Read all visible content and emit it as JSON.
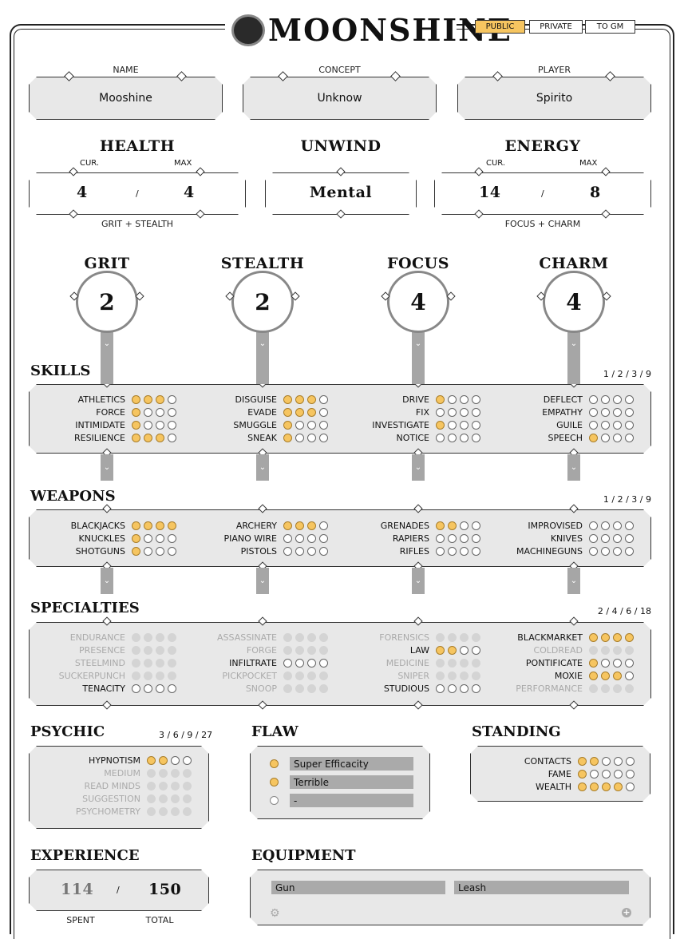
{
  "header": {
    "logo_text": "Moonshine",
    "tabs": [
      {
        "label": "PUBLIC",
        "active": true
      },
      {
        "label": "PRIVATE",
        "active": false
      },
      {
        "label": "TO GM",
        "active": false
      }
    ]
  },
  "identity": {
    "name_label": "NAME",
    "name": "Mooshine",
    "concept_label": "CONCEPT",
    "concept": "Unknow",
    "player_label": "PLAYER",
    "player": "Spirito"
  },
  "health": {
    "title": "HEALTH",
    "cur_label": "CUR.",
    "max_label": "MAX",
    "cur": "4",
    "sep": "/",
    "max": "4",
    "formula": "GRIT + STEALTH"
  },
  "unwind": {
    "title": "UNWIND",
    "value": "Mental"
  },
  "energy": {
    "title": "ENERGY",
    "cur_label": "CUR.",
    "max_label": "MAX",
    "cur": "14",
    "sep": "/",
    "max": "8",
    "formula": "FOCUS + CHARM"
  },
  "attributes": [
    {
      "name": "GRIT",
      "value": "2"
    },
    {
      "name": "STEALTH",
      "value": "2"
    },
    {
      "name": "FOCUS",
      "value": "4"
    },
    {
      "name": "CHARM",
      "value": "4"
    }
  ],
  "skills": {
    "title": "SKILLS",
    "scale": "1 / 2 / 3 / 9",
    "cols": [
      [
        {
          "n": "ATHLETICS",
          "v": 3
        },
        {
          "n": "FORCE",
          "v": 1
        },
        {
          "n": "INTIMIDATE",
          "v": 1
        },
        {
          "n": "RESILIENCE",
          "v": 3
        }
      ],
      [
        {
          "n": "DISGUISE",
          "v": 3
        },
        {
          "n": "EVADE",
          "v": 3
        },
        {
          "n": "SMUGGLE",
          "v": 1
        },
        {
          "n": "SNEAK",
          "v": 1
        }
      ],
      [
        {
          "n": "DRIVE",
          "v": 1
        },
        {
          "n": "FIX",
          "v": 0
        },
        {
          "n": "INVESTIGATE",
          "v": 1
        },
        {
          "n": "NOTICE",
          "v": 0
        }
      ],
      [
        {
          "n": "DEFLECT",
          "v": 0
        },
        {
          "n": "EMPATHY",
          "v": 0
        },
        {
          "n": "GUILE",
          "v": 0
        },
        {
          "n": "SPEECH",
          "v": 1
        }
      ]
    ]
  },
  "weapons": {
    "title": "WEAPONS",
    "scale": "1 / 2 / 3 / 9",
    "cols": [
      [
        {
          "n": "BLACKJACKS",
          "v": 4
        },
        {
          "n": "KNUCKLES",
          "v": 1
        },
        {
          "n": "SHOTGUNS",
          "v": 1
        }
      ],
      [
        {
          "n": "ARCHERY",
          "v": 3
        },
        {
          "n": "PIANO WIRE",
          "v": 0
        },
        {
          "n": "PISTOLS",
          "v": 0
        }
      ],
      [
        {
          "n": "GRENADES",
          "v": 2
        },
        {
          "n": "RAPIERS",
          "v": 0
        },
        {
          "n": "RIFLES",
          "v": 0
        }
      ],
      [
        {
          "n": "IMPROVISED",
          "v": 0
        },
        {
          "n": "KNIVES",
          "v": 0
        },
        {
          "n": "MACHINEGUNS",
          "v": 0
        }
      ]
    ]
  },
  "specialties": {
    "title": "SPECIALTIES",
    "scale": "2 / 4 / 6 / 18",
    "cols": [
      [
        {
          "n": "ENDURANCE",
          "v": 0,
          "dim": true
        },
        {
          "n": "PRESENCE",
          "v": 0,
          "dim": true
        },
        {
          "n": "STEELMIND",
          "v": 0,
          "dim": true
        },
        {
          "n": "SUCKERPUNCH",
          "v": 0,
          "dim": true
        },
        {
          "n": "TENACITY",
          "v": 0,
          "dim": false
        }
      ],
      [
        {
          "n": "ASSASSINATE",
          "v": 0,
          "dim": true
        },
        {
          "n": "FORGE",
          "v": 0,
          "dim": true
        },
        {
          "n": "INFILTRATE",
          "v": 0,
          "dim": false
        },
        {
          "n": "PICKPOCKET",
          "v": 0,
          "dim": true
        },
        {
          "n": "SNOOP",
          "v": 0,
          "dim": true
        }
      ],
      [
        {
          "n": "FORENSICS",
          "v": 0,
          "dim": true
        },
        {
          "n": "LAW",
          "v": 2,
          "dim": false
        },
        {
          "n": "MEDICINE",
          "v": 0,
          "dim": true
        },
        {
          "n": "SNIPER",
          "v": 0,
          "dim": true
        },
        {
          "n": "STUDIOUS",
          "v": 0,
          "dim": false
        }
      ],
      [
        {
          "n": "BLACKMARKET",
          "v": 4,
          "dim": false
        },
        {
          "n": "COLDREAD",
          "v": 0,
          "dim": true
        },
        {
          "n": "PONTIFICATE",
          "v": 1,
          "dim": false
        },
        {
          "n": "MOXIE",
          "v": 3,
          "dim": false
        },
        {
          "n": "PERFORMANCE",
          "v": 0,
          "dim": true
        }
      ]
    ]
  },
  "psychic": {
    "title": "PSYCHIC",
    "scale": "3 / 6 / 9 / 27",
    "rows": [
      {
        "n": "HYPNOTISM",
        "v": 2,
        "dim": false
      },
      {
        "n": "MEDIUM",
        "v": 0,
        "dim": true
      },
      {
        "n": "READ MINDS",
        "v": 0,
        "dim": true
      },
      {
        "n": "SUGGESTION",
        "v": 0,
        "dim": true
      },
      {
        "n": "PSYCHOMETRY",
        "v": 0,
        "dim": true
      }
    ]
  },
  "flaw": {
    "title": "FLAW",
    "rows": [
      {
        "text": "Super Efficacity",
        "on": true
      },
      {
        "text": "Terrible",
        "on": true
      },
      {
        "text": "-",
        "on": false
      }
    ]
  },
  "standing": {
    "title": "STANDING",
    "rows": [
      {
        "n": "CONTACTS",
        "v": 2
      },
      {
        "n": "FAME",
        "v": 1
      },
      {
        "n": "WEALTH",
        "v": 4
      }
    ]
  },
  "experience": {
    "title": "EXPERIENCE",
    "spent": "114",
    "sep": "/",
    "total": "150",
    "spent_label": "SPENT",
    "total_label": "TOTAL"
  },
  "equipment": {
    "title": "EQUIPMENT",
    "items": [
      "Gun",
      "Leash"
    ]
  }
}
